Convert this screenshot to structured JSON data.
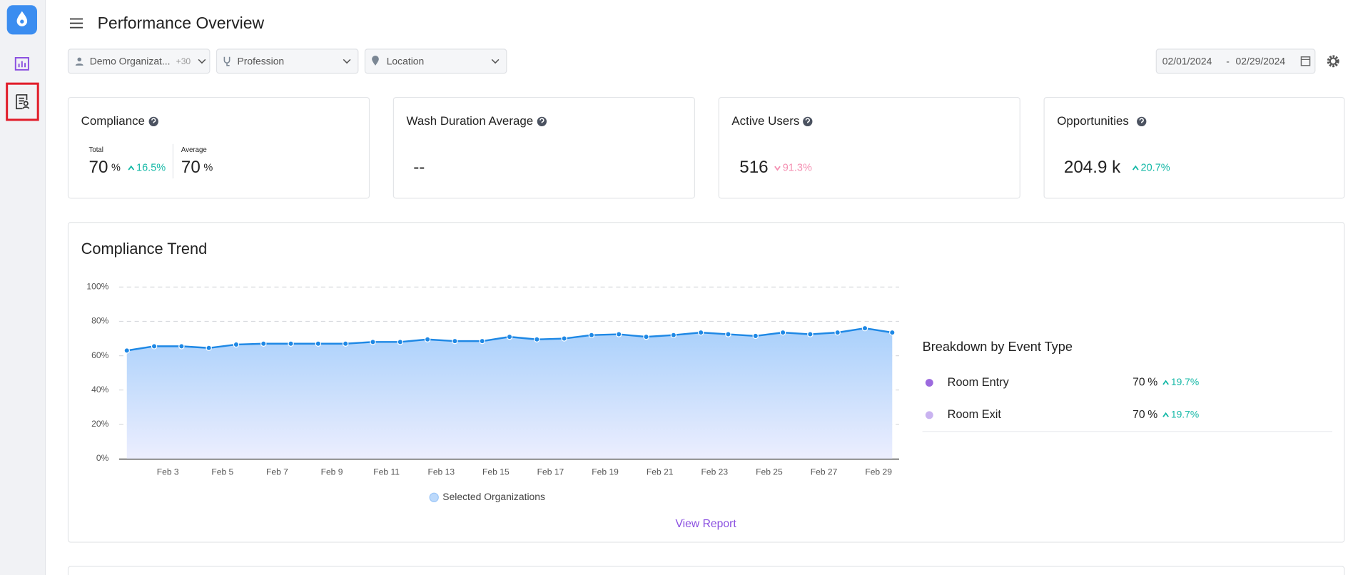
{
  "header": {
    "title": "Performance Overview"
  },
  "filters": {
    "organization": "Demo Organizat...",
    "organization_extra": "+30",
    "profession": "Profession",
    "location": "Location",
    "date_start": "02/01/2024",
    "date_separator": "-",
    "date_end": "02/29/2024"
  },
  "kpis": [
    {
      "title": "Compliance",
      "total_label": "Total",
      "total": 70,
      "total_unit": "%",
      "total_change": "16.5%",
      "average_label": "Average",
      "average": 70,
      "average_unit": "%"
    },
    {
      "title": "Wash Duration Average",
      "value": "--"
    },
    {
      "title": "Active Users",
      "value": 516,
      "change": "91.3%"
    },
    {
      "title": "Opportunities",
      "value": "204.9 k",
      "change": "20.7%"
    }
  ],
  "chart_data": {
    "type": "area",
    "title": "Compliance Trend",
    "categories": [
      null,
      null,
      "Feb 3",
      null,
      "Feb 5",
      null,
      "Feb 7",
      null,
      "Feb 9",
      null,
      "Feb 11",
      null,
      "Feb 13",
      null,
      "Feb 15",
      null,
      "Feb 17",
      null,
      "Feb 19",
      null,
      "Feb 21",
      null,
      "Feb 23",
      null,
      "Feb 25",
      null,
      "Feb 27",
      null,
      "Feb 29"
    ],
    "series": [
      {
        "name": "Selected Organizations",
        "color": "#1e88e5",
        "values": [
          63,
          65.5,
          65.5,
          64.5,
          66.5,
          67,
          67,
          67,
          67,
          68,
          68,
          69.5,
          68.5,
          68.5,
          71,
          69.5,
          70,
          72,
          72.5,
          71,
          72,
          73.5,
          72.5,
          71.5,
          73.5,
          72.5,
          73.5,
          76,
          73.5
        ]
      }
    ],
    "ylim": [
      0,
      100
    ],
    "yticks": [
      {
        "value": 0,
        "label": "0%"
      },
      {
        "value": 20,
        "label": "20%"
      },
      {
        "value": 40,
        "label": "40%"
      },
      {
        "value": 60,
        "label": "60%"
      },
      {
        "value": 80,
        "label": "80%"
      },
      {
        "value": 100,
        "label": "100%"
      }
    ],
    "grid": true
  },
  "breakdown": {
    "title": "Breakdown by Event Type",
    "rows": [
      {
        "name": "Room Entry",
        "color": "#9c6ade",
        "value": 70,
        "unit": "%",
        "change": "19.7%"
      },
      {
        "name": "Room Exit",
        "color": "#c9b3f0",
        "value": 70,
        "unit": "%",
        "change": "19.7%"
      }
    ]
  },
  "link": "View Report"
}
